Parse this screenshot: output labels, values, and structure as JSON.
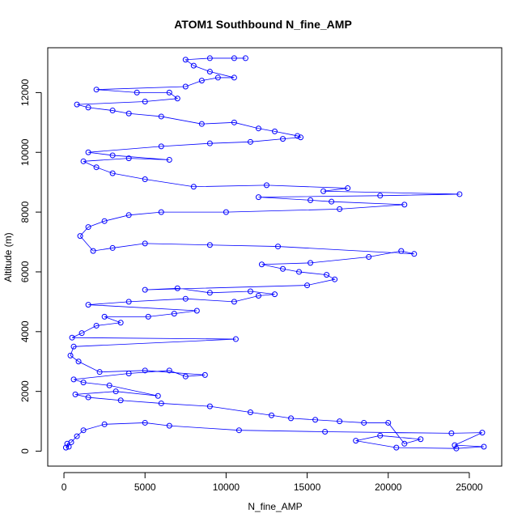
{
  "chart_data": {
    "type": "scatter",
    "title": "ATOM1 Southbound N_fine_AMP",
    "xlabel": "N_fine_AMP",
    "ylabel": "Altitude (m)",
    "xlim": [
      -1000,
      27000
    ],
    "ylim": [
      -500,
      13500
    ],
    "xticks": [
      0,
      5000,
      10000,
      15000,
      20000,
      25000
    ],
    "yticks": [
      0,
      2000,
      4000,
      6000,
      8000,
      10000,
      12000
    ],
    "xtick_labels": [
      "0",
      "5000",
      "10000",
      "15000",
      "20000",
      "25000"
    ],
    "ytick_labels": [
      "0",
      "2000",
      "4000",
      "6000",
      "8000",
      "10000",
      "12000"
    ],
    "grid": false,
    "legend": "none",
    "marker": "open-circle",
    "line_connected": true,
    "color": "#0000ff",
    "series": [
      {
        "values": [
          [
            120,
            120
          ],
          [
            300,
            150
          ],
          [
            200,
            250
          ],
          [
            450,
            300
          ],
          [
            800,
            500
          ],
          [
            1200,
            700
          ],
          [
            2500,
            900
          ],
          [
            5000,
            950
          ],
          [
            6500,
            850
          ],
          [
            10800,
            700
          ],
          [
            16100,
            650
          ],
          [
            23900,
            600
          ],
          [
            25800,
            620
          ],
          [
            24100,
            200
          ],
          [
            25900,
            150
          ],
          [
            24200,
            90
          ],
          [
            20500,
            120
          ],
          [
            18000,
            350
          ],
          [
            19500,
            520
          ],
          [
            22000,
            400
          ],
          [
            21000,
            250
          ],
          [
            20000,
            950
          ],
          [
            18500,
            950
          ],
          [
            17000,
            1000
          ],
          [
            15500,
            1050
          ],
          [
            14000,
            1100
          ],
          [
            12800,
            1200
          ],
          [
            11500,
            1300
          ],
          [
            9000,
            1500
          ],
          [
            6000,
            1600
          ],
          [
            3500,
            1700
          ],
          [
            1500,
            1800
          ],
          [
            700,
            1900
          ],
          [
            3200,
            2000
          ],
          [
            5800,
            1850
          ],
          [
            2800,
            2200
          ],
          [
            1200,
            2300
          ],
          [
            600,
            2400
          ],
          [
            4000,
            2600
          ],
          [
            6500,
            2700
          ],
          [
            7500,
            2500
          ],
          [
            8700,
            2550
          ],
          [
            5000,
            2700
          ],
          [
            2200,
            2650
          ],
          [
            900,
            3000
          ],
          [
            400,
            3200
          ],
          [
            600,
            3500
          ],
          [
            10600,
            3750
          ],
          [
            500,
            3800
          ],
          [
            1100,
            3950
          ],
          [
            2000,
            4200
          ],
          [
            3500,
            4300
          ],
          [
            2500,
            4500
          ],
          [
            5200,
            4500
          ],
          [
            6800,
            4600
          ],
          [
            8200,
            4700
          ],
          [
            1500,
            4900
          ],
          [
            4000,
            5000
          ],
          [
            7500,
            5100
          ],
          [
            10500,
            5000
          ],
          [
            12000,
            5200
          ],
          [
            13000,
            5250
          ],
          [
            11500,
            5350
          ],
          [
            9000,
            5300
          ],
          [
            7000,
            5450
          ],
          [
            5000,
            5400
          ],
          [
            15000,
            5550
          ],
          [
            16700,
            5750
          ],
          [
            16200,
            5900
          ],
          [
            14500,
            6000
          ],
          [
            13500,
            6100
          ],
          [
            12200,
            6250
          ],
          [
            15200,
            6300
          ],
          [
            18800,
            6500
          ],
          [
            20800,
            6700
          ],
          [
            21600,
            6600
          ],
          [
            13200,
            6850
          ],
          [
            9000,
            6900
          ],
          [
            5000,
            6950
          ],
          [
            3000,
            6800
          ],
          [
            1800,
            6700
          ],
          [
            1000,
            7200
          ],
          [
            1500,
            7500
          ],
          [
            2500,
            7700
          ],
          [
            4000,
            7900
          ],
          [
            6000,
            8000
          ],
          [
            10000,
            8000
          ],
          [
            17000,
            8100
          ],
          [
            21000,
            8250
          ],
          [
            16500,
            8350
          ],
          [
            15200,
            8400
          ],
          [
            12000,
            8500
          ],
          [
            19500,
            8550
          ],
          [
            24400,
            8600
          ],
          [
            16000,
            8700
          ],
          [
            17500,
            8800
          ],
          [
            12500,
            8900
          ],
          [
            8000,
            8850
          ],
          [
            5000,
            9100
          ],
          [
            3000,
            9300
          ],
          [
            2000,
            9500
          ],
          [
            1200,
            9700
          ],
          [
            4000,
            9800
          ],
          [
            6500,
            9750
          ],
          [
            3000,
            9900
          ],
          [
            1500,
            10000
          ],
          [
            6000,
            10200
          ],
          [
            9000,
            10300
          ],
          [
            11500,
            10350
          ],
          [
            13500,
            10450
          ],
          [
            14600,
            10500
          ],
          [
            14400,
            10550
          ],
          [
            13000,
            10700
          ],
          [
            12000,
            10800
          ],
          [
            10500,
            11000
          ],
          [
            8500,
            10950
          ],
          [
            6000,
            11200
          ],
          [
            4000,
            11300
          ],
          [
            3000,
            11400
          ],
          [
            1500,
            11500
          ],
          [
            800,
            11600
          ],
          [
            5000,
            11700
          ],
          [
            7000,
            11800
          ],
          [
            6500,
            12000
          ],
          [
            4500,
            12000
          ],
          [
            2000,
            12100
          ],
          [
            7500,
            12200
          ],
          [
            8500,
            12400
          ],
          [
            9500,
            12500
          ],
          [
            10500,
            12500
          ],
          [
            9000,
            12700
          ],
          [
            8000,
            12900
          ],
          [
            7500,
            13100
          ],
          [
            9000,
            13150
          ],
          [
            10500,
            13150
          ],
          [
            11200,
            13150
          ]
        ]
      }
    ]
  }
}
